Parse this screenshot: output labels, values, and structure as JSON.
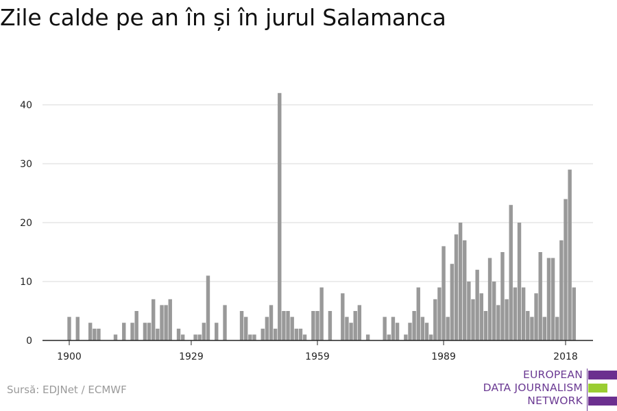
{
  "title": "Zile calde pe an în și în jurul Salamanca",
  "source": "Sursă: EDJNet / ECMWF",
  "logo": {
    "line1": "EUROPEAN",
    "line2": "DATA JOURNALISM",
    "line3": "NETWORK",
    "colors": {
      "purple": "#6b2f8f",
      "green": "#9acd32"
    }
  },
  "chart_data": {
    "type": "bar",
    "title": "Zile calde pe an în și în jurul Salamanca",
    "xlabel": "",
    "ylabel": "",
    "x_start": 1900,
    "x_end": 2018,
    "x_ticks": [
      1900,
      1929,
      1959,
      1989,
      2018
    ],
    "y_ticks": [
      0,
      10,
      20,
      30,
      40
    ],
    "ylim": [
      0,
      44
    ],
    "grid": true,
    "bar_color": "#999999",
    "values": [
      4,
      0,
      4,
      0,
      0,
      3,
      2,
      2,
      0,
      0,
      0,
      1,
      0,
      3,
      0,
      3,
      5,
      0,
      3,
      3,
      7,
      2,
      6,
      6,
      7,
      0,
      2,
      1,
      0,
      0,
      1,
      1,
      3,
      11,
      0,
      3,
      0,
      6,
      0,
      0,
      0,
      5,
      4,
      1,
      1,
      0,
      2,
      4,
      6,
      2,
      42,
      5,
      5,
      4,
      2,
      2,
      1,
      0,
      5,
      5,
      9,
      0,
      5,
      0,
      0,
      8,
      4,
      3,
      5,
      6,
      0,
      1,
      0,
      0,
      0,
      4,
      1,
      4,
      3,
      0,
      1,
      3,
      5,
      9,
      4,
      3,
      1,
      7,
      9,
      16,
      4,
      13,
      18,
      20,
      17,
      10,
      7,
      12,
      8,
      5,
      14,
      10,
      6,
      15,
      7,
      23,
      9,
      20,
      9,
      5,
      4,
      8,
      15,
      4,
      14,
      14,
      4,
      17,
      24,
      29,
      9
    ]
  }
}
